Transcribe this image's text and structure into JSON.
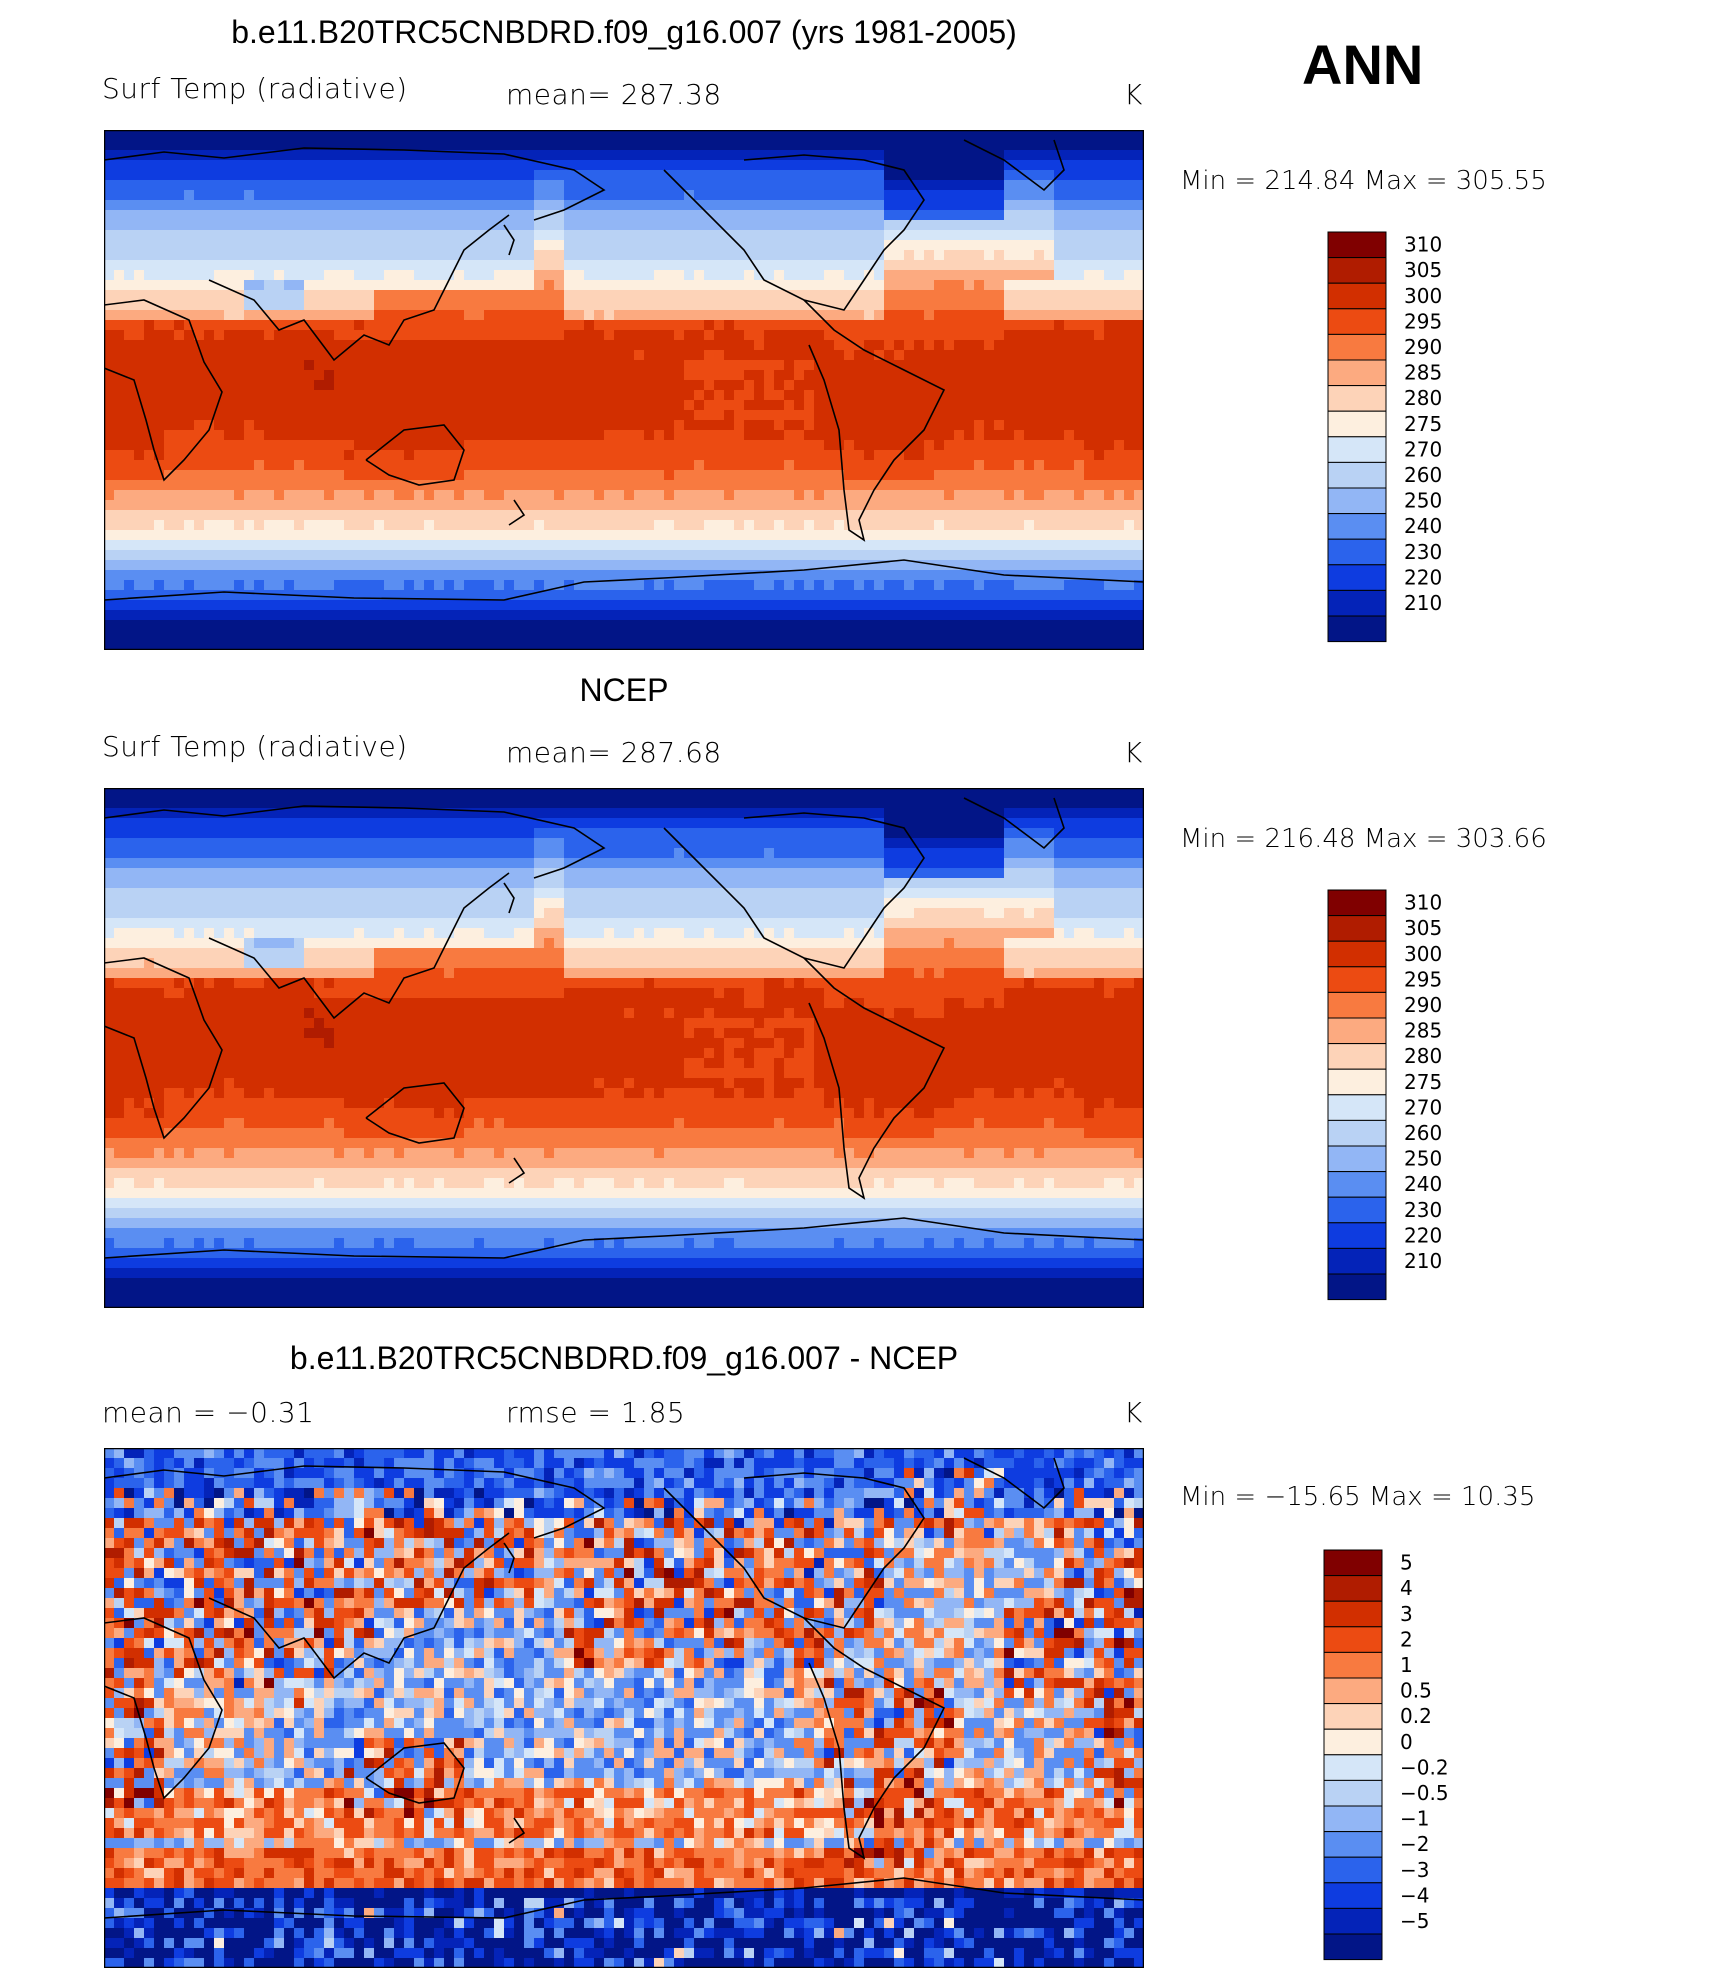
{
  "figure": {
    "season": "ANN",
    "units": "K"
  },
  "chart_data": [
    {
      "type": "heatmap",
      "title": "b.e11.B20TRC5CNBDRD.f09_g16.007 (yrs 1981-2005)",
      "left_label": "Surf Temp (radiative)",
      "center_label": "mean=  287.38",
      "units": "K",
      "stats": "Min  =  214.84  Max  =  305.55",
      "min": 214.84,
      "max": 305.55,
      "mean": 287.38,
      "colorbar_levels": [
        "310",
        "305",
        "300",
        "295",
        "290",
        "285",
        "280",
        "275",
        "270",
        "260",
        "250",
        "240",
        "230",
        "220",
        "210"
      ],
      "colorbar_colors": [
        "#800000",
        "#b01c00",
        "#d22f00",
        "#ec4b12",
        "#f87a40",
        "#fcaa80",
        "#fdd3b8",
        "#fdefdf",
        "#d5e6f8",
        "#b9d2f4",
        "#92b6f5",
        "#5a8ef2",
        "#2b63ec",
        "#0e3ce0",
        "#0423b8",
        "#021587"
      ],
      "field": "model"
    },
    {
      "type": "heatmap",
      "title": "NCEP",
      "left_label": "Surf Temp (radiative)",
      "center_label": "mean=  287.68",
      "units": "K",
      "stats": "Min  =  216.48  Max  =  303.66",
      "min": 216.48,
      "max": 303.66,
      "mean": 287.68,
      "colorbar_levels": [
        "310",
        "305",
        "300",
        "295",
        "290",
        "285",
        "280",
        "275",
        "270",
        "260",
        "250",
        "240",
        "230",
        "220",
        "210"
      ],
      "colorbar_colors": [
        "#800000",
        "#b01c00",
        "#d22f00",
        "#ec4b12",
        "#f87a40",
        "#fcaa80",
        "#fdd3b8",
        "#fdefdf",
        "#d5e6f8",
        "#b9d2f4",
        "#92b6f5",
        "#5a8ef2",
        "#2b63ec",
        "#0e3ce0",
        "#0423b8",
        "#021587"
      ],
      "field": "obs"
    },
    {
      "type": "heatmap",
      "title": "b.e11.B20TRC5CNBDRD.f09_g16.007 - NCEP",
      "left_label": "mean =    −0.31",
      "center_label": "rmse =     1.85",
      "units": "K",
      "stats": "Min  =  −15.65  Max  =    10.35",
      "min": -15.65,
      "max": 10.35,
      "mean": -0.31,
      "rmse": 1.85,
      "colorbar_levels": [
        "5",
        "4",
        "3",
        "2",
        "1",
        "0.5",
        "0.2",
        "0",
        "−0.2",
        "−0.5",
        "−1",
        "−2",
        "−3",
        "−4",
        "−5"
      ],
      "colorbar_colors": [
        "#800000",
        "#b01c00",
        "#d22f00",
        "#ec4b12",
        "#f87a40",
        "#fcaa80",
        "#fdd3b8",
        "#fdefdf",
        "#d5e6f8",
        "#b9d2f4",
        "#92b6f5",
        "#5a8ef2",
        "#2b63ec",
        "#0e3ce0",
        "#0423b8",
        "#021587"
      ],
      "field": "diff"
    }
  ]
}
